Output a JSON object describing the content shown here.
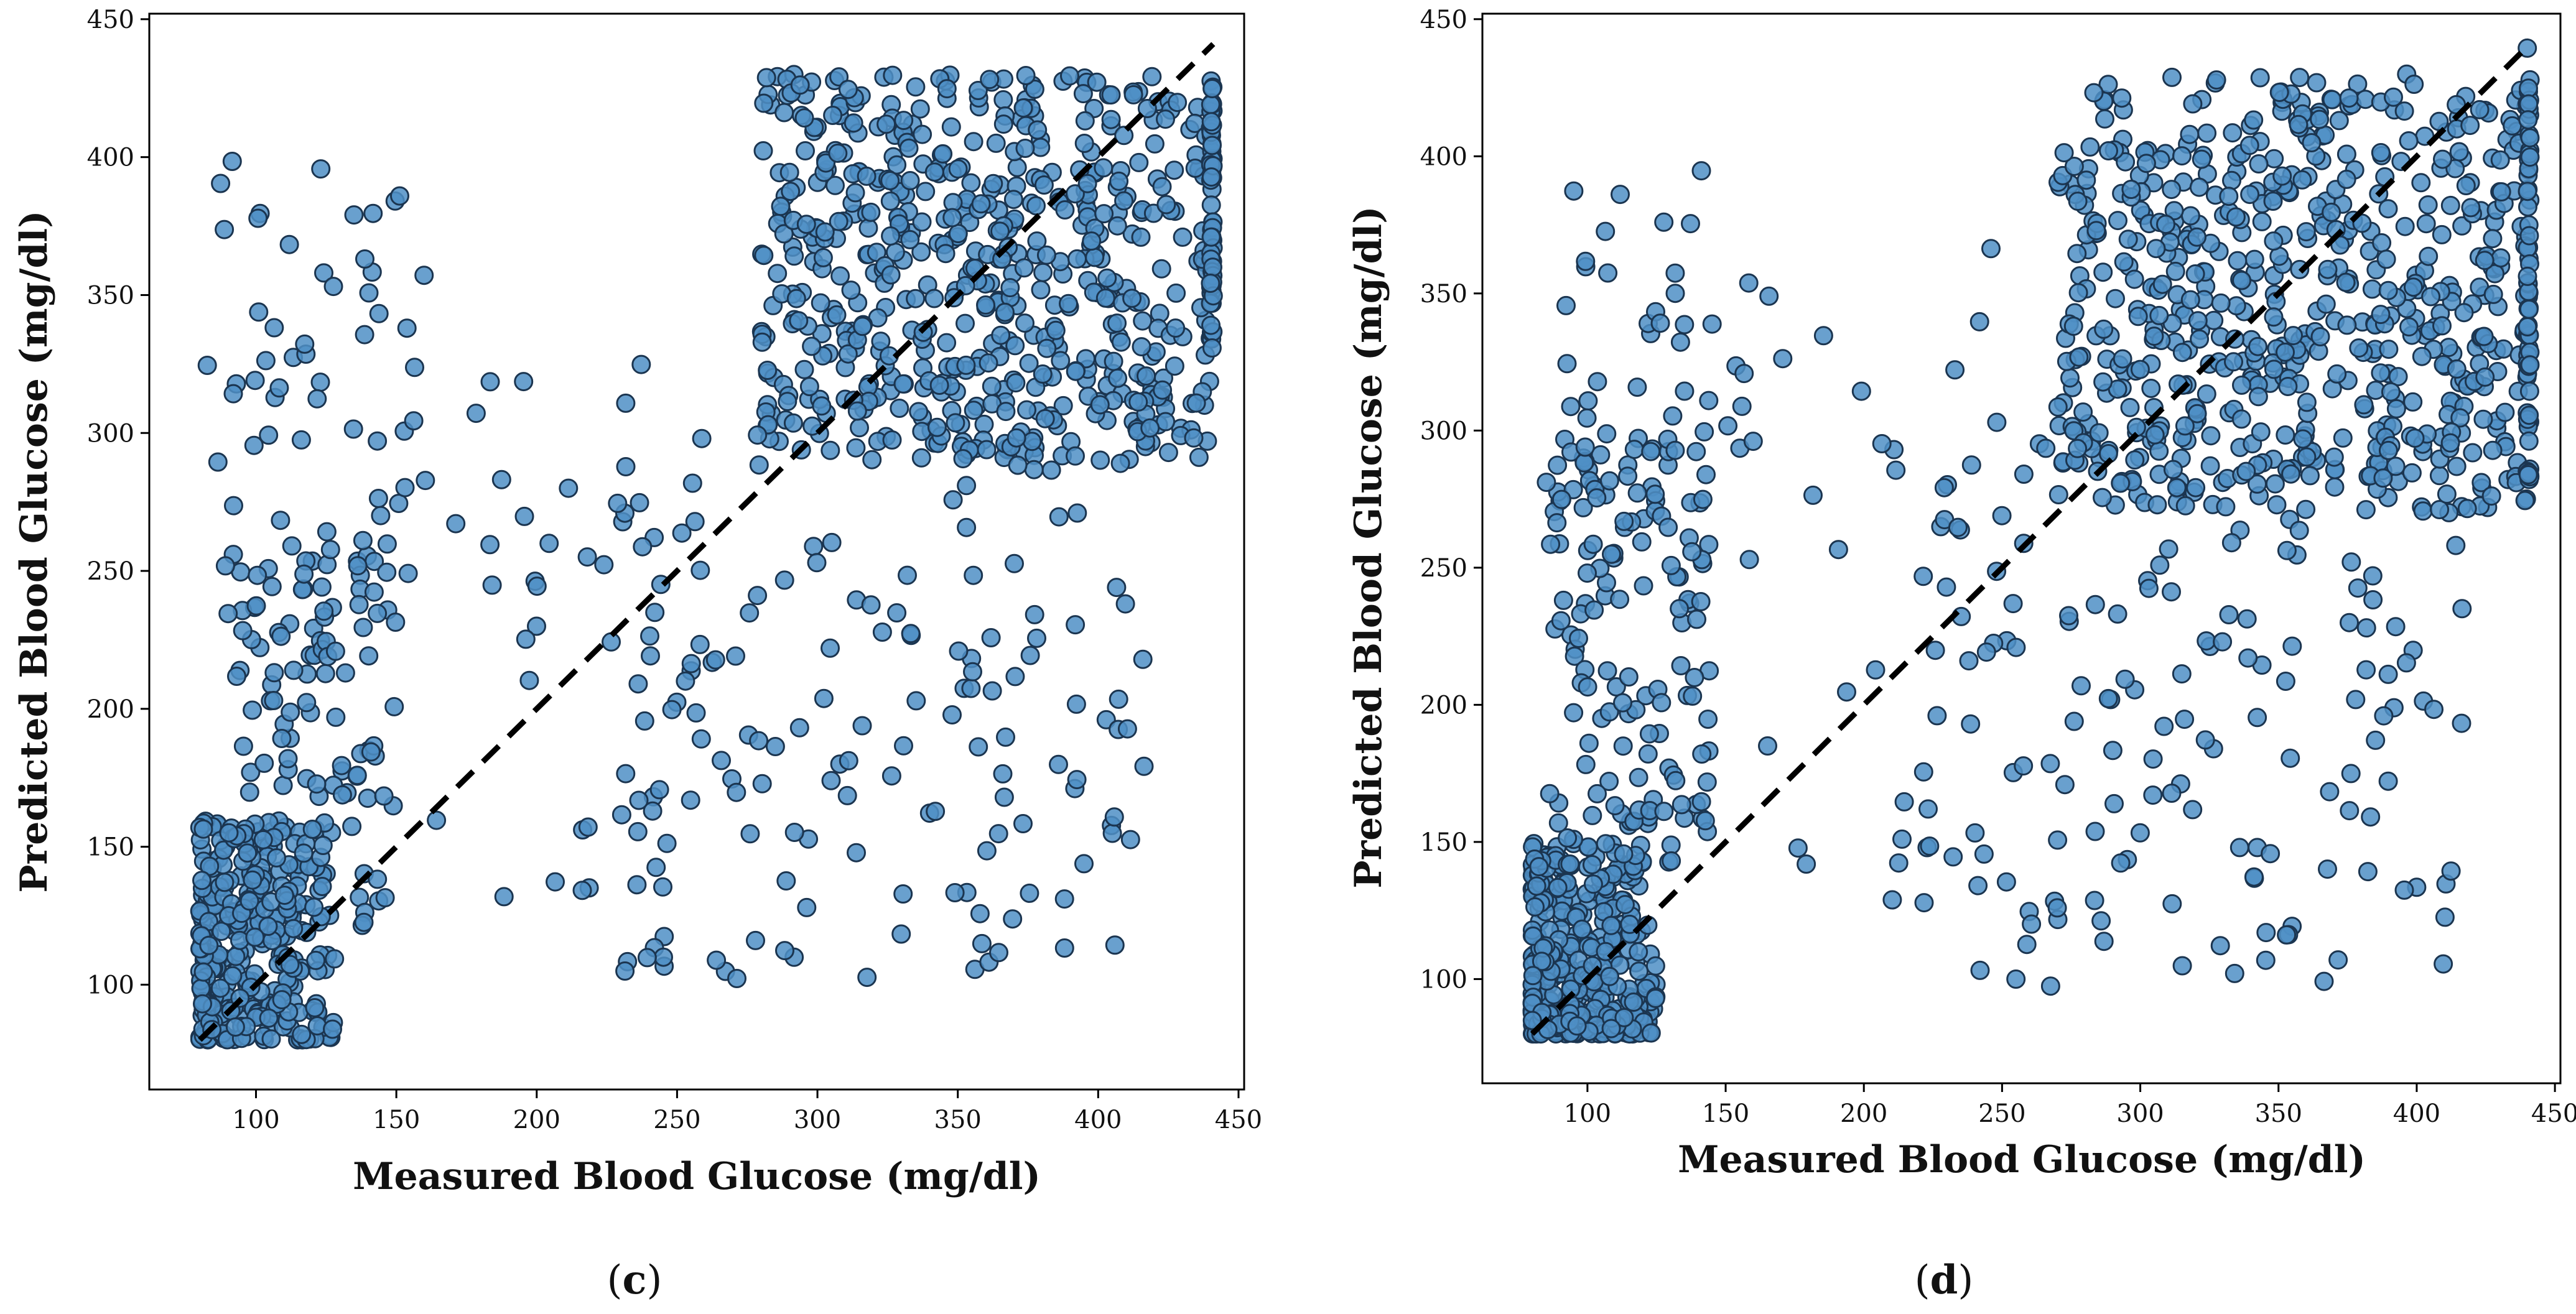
{
  "figure": {
    "panels": [
      "(c)",
      "(d)"
    ]
  },
  "chart_data": [
    {
      "type": "scatter",
      "panel_id": "c",
      "panel_label": {
        "open": "(",
        "letter": "c",
        "close": ")"
      },
      "xlabel": "Measured Blood Glucose (mg/dl)",
      "ylabel": "Predicted Blood Glucose (mg/dl)",
      "xlim": [
        62,
        452
      ],
      "ylim": [
        62,
        452
      ],
      "xticks": [
        100,
        150,
        200,
        250,
        300,
        350,
        400,
        450
      ],
      "yticks": [
        100,
        150,
        200,
        250,
        300,
        350,
        400,
        450
      ],
      "reference_line": {
        "style": "dashed",
        "x": [
          80,
          441
        ],
        "y": [
          80,
          441
        ]
      },
      "marker_color": "#4f8fc6",
      "marker_edge_color": "#1b3550",
      "seed": 7,
      "clusters": [
        {
          "count": 300,
          "x": [
            80,
            128
          ],
          "y": [
            80,
            160
          ],
          "skew": 1.6
        },
        {
          "count": 120,
          "x": [
            90,
            150
          ],
          "y": [
            120,
            260
          ]
        },
        {
          "count": 60,
          "x": [
            78,
            160
          ],
          "y": [
            220,
            400
          ]
        },
        {
          "count": 600,
          "x": [
            280,
            441
          ],
          "y": [
            290,
            430
          ]
        },
        {
          "count": 150,
          "x": [
            230,
            420
          ],
          "y": [
            100,
            300
          ]
        },
        {
          "count": 40,
          "x": [
            160,
            280
          ],
          "y": [
            130,
            350
          ]
        },
        {
          "count": 60,
          "x": [
            440,
            441
          ],
          "y": [
            330,
            430
          ]
        }
      ]
    },
    {
      "type": "scatter",
      "panel_id": "d",
      "panel_label": {
        "open": "(",
        "letter": "d",
        "close": ")"
      },
      "xlabel": "Measured Blood Glucose (mg/dl)",
      "ylabel": "Predicted Blood Glucose (mg/dl)",
      "xlim": [
        62,
        452
      ],
      "ylim": [
        62,
        452
      ],
      "xticks": [
        100,
        150,
        200,
        250,
        300,
        350,
        400,
        450
      ],
      "yticks": [
        100,
        150,
        200,
        250,
        300,
        350,
        400,
        450
      ],
      "reference_line": {
        "style": "dashed",
        "x": [
          80,
          441
        ],
        "y": [
          80,
          441
        ]
      },
      "marker_color": "#4f8fc6",
      "marker_edge_color": "#1b3550",
      "seed": 19,
      "clusters": [
        {
          "count": 380,
          "x": [
            80,
            125
          ],
          "y": [
            80,
            150
          ],
          "skew": 1.8
        },
        {
          "count": 140,
          "x": [
            85,
            145
          ],
          "y": [
            140,
            300
          ]
        },
        {
          "count": 50,
          "x": [
            90,
            160
          ],
          "y": [
            250,
            420
          ]
        },
        {
          "count": 620,
          "x": [
            270,
            441
          ],
          "y": [
            270,
            430
          ]
        },
        {
          "count": 160,
          "x": [
            210,
            420
          ],
          "y": [
            95,
            300
          ]
        },
        {
          "count": 30,
          "x": [
            160,
            250
          ],
          "y": [
            120,
            370
          ]
        },
        {
          "count": 60,
          "x": [
            440,
            441
          ],
          "y": [
            280,
            440
          ]
        }
      ]
    }
  ]
}
